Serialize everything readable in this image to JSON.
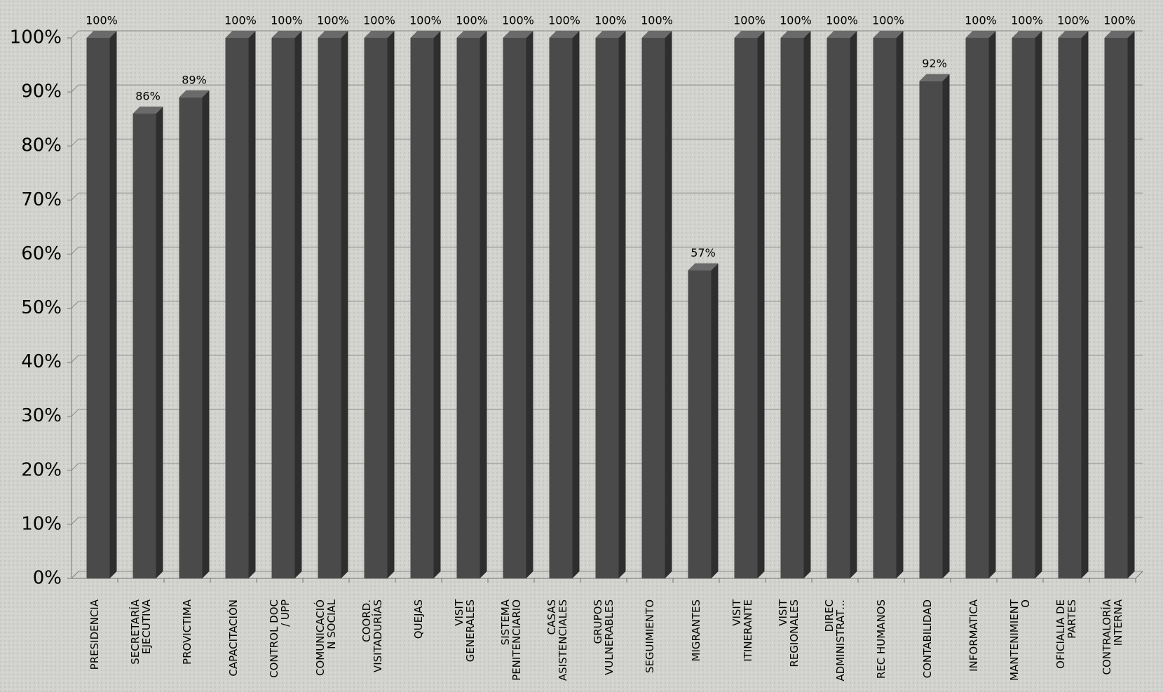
{
  "chart_data": {
    "type": "bar",
    "categories": [
      "PRESIDENCIA",
      "SECRETARÍA\nEJECUTIVA",
      "PROVICTIMA",
      "CAPACITACIÓN",
      "CONTROL DOC\n/ UPP",
      "COMUNICACIÓ\nN SOCIAL",
      "COORD.\nVISITADURÍAS",
      "QUEJAS",
      "VISIT\nGENERALES",
      "SISTEMA\nPENITENCIARIO",
      "CASAS\nASISTENCIALES",
      "GRUPOS\nVULNERABLES",
      "SEGUIMIENTO",
      "MIGRANTES",
      "VISIT\nITINERANTE",
      "VISIT\nREGIONALES",
      "DIREC\nADMINISTRAT…",
      "REC HUMANOS",
      "CONTABILIDAD",
      "INFORMATICA",
      "MANTENIMIENT\nO",
      "OFICIALIA DE\nPARTES",
      "CONTRALORÍA\nINTERNA"
    ],
    "values": [
      100,
      86,
      89,
      100,
      100,
      100,
      100,
      100,
      100,
      100,
      100,
      100,
      100,
      57,
      100,
      100,
      100,
      100,
      92,
      100,
      100,
      100,
      100
    ],
    "value_labels": [
      "100%",
      "86%",
      "89%",
      "100%",
      "100%",
      "100%",
      "100%",
      "100%",
      "100%",
      "100%",
      "100%",
      "100%",
      "100%",
      "57%",
      "100%",
      "100%",
      "100%",
      "100%",
      "92%",
      "100%",
      "100%",
      "100%",
      "100%"
    ],
    "color": "#4a4a4a",
    "ylim": [
      0,
      100
    ],
    "yticks": [
      {
        "value": 0,
        "label": "0%"
      },
      {
        "value": 10,
        "label": "10%"
      },
      {
        "value": 20,
        "label": "20%"
      },
      {
        "value": 30,
        "label": "30%"
      },
      {
        "value": 40,
        "label": "40%"
      },
      {
        "value": 50,
        "label": "50%"
      },
      {
        "value": 60,
        "label": "60%"
      },
      {
        "value": 70,
        "label": "70%"
      },
      {
        "value": 80,
        "label": "80%"
      },
      {
        "value": 90,
        "label": "90%"
      },
      {
        "value": 100,
        "label": "100%"
      }
    ],
    "grid": true
  }
}
